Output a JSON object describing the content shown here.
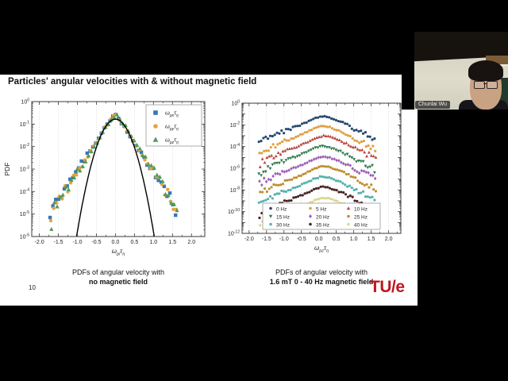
{
  "window": {
    "background": "#000000"
  },
  "slide": {
    "title": "Particles' angular velocities with & without magnetic field",
    "page_number": "10",
    "logo_text": "TU/e",
    "logo_color": "#be1620",
    "captions": {
      "left_line1": "PDFs of angular velocity with",
      "left_line2": "no magnetic field",
      "right_line1": "PDFs of angular velocity with",
      "right_line2": "1.6 mT 0 - 40 Hz magnetic field"
    }
  },
  "webcam": {
    "name_label": "Chunlai Wu"
  },
  "chart_data": [
    {
      "type": "scatter",
      "title": "",
      "ylabel": "PDF",
      "xlabel_parts": [
        "ω",
        "pi",
        "τ",
        "η"
      ],
      "xlim": [
        -2.2,
        2.35
      ],
      "x_ticks": [
        -2.0,
        -1.5,
        -1.0,
        -0.5,
        0.0,
        0.5,
        1.0,
        1.5,
        2.0
      ],
      "y_scale": "log",
      "y_min_exponent": -6,
      "y_labeled_exponents": [
        0,
        -1,
        -2,
        -3,
        -4,
        -5,
        -6
      ],
      "grid": "vertical-dotted",
      "legend_position": "top-right",
      "point_step": 0.075,
      "profile": [
        [
          -1.7,
          -5.4
        ],
        [
          -1.6,
          -4.6
        ],
        [
          -1.5,
          -4.35
        ],
        [
          -1.25,
          -3.8
        ],
        [
          -1.0,
          -3.1
        ],
        [
          -0.75,
          -2.45
        ],
        [
          -0.5,
          -1.8
        ],
        [
          -0.25,
          -1.1
        ],
        [
          0.0,
          -0.55
        ],
        [
          0.25,
          -1.1
        ],
        [
          0.5,
          -1.8
        ],
        [
          0.75,
          -2.45
        ],
        [
          1.0,
          -3.1
        ],
        [
          1.25,
          -3.8
        ],
        [
          1.5,
          -4.4
        ],
        [
          1.65,
          -5.0
        ]
      ],
      "series": [
        {
          "label_parts": [
            "ω",
            "px",
            "τ",
            "η"
          ],
          "marker": "square",
          "color": "#3b76b0"
        },
        {
          "label_parts": [
            "ω",
            "py",
            "τ",
            "η"
          ],
          "marker": "circle",
          "color": "#e8a33d"
        },
        {
          "label_parts": [
            "ω",
            "pz",
            "τ",
            "η"
          ],
          "marker": "triangle",
          "color": "#4f9c57"
        }
      ],
      "reference_curve": {
        "shape": "gaussian",
        "color": "#000000",
        "peak_log10": -0.78,
        "coef": 5.0,
        "x_extent": 1.08
      }
    },
    {
      "type": "scatter",
      "title": "",
      "ylabel": "",
      "xlabel_parts": [
        "ω",
        "pz",
        "τ",
        "η"
      ],
      "xlim": [
        -2.2,
        2.35
      ],
      "x_ticks": [
        -2.0,
        -1.5,
        -1.0,
        -0.5,
        0.0,
        0.5,
        1.0,
        1.5,
        2.0
      ],
      "y_scale": "log",
      "y_min_exponent": -12,
      "y_labeled_exponents": [
        0,
        -2,
        -4,
        -6,
        -8,
        -10,
        -12
      ],
      "grid": "vertical-dotted",
      "legend_position": "bottom-center",
      "point_step": 0.065,
      "profile": [
        [
          -1.7,
          -2.6
        ],
        [
          -1.5,
          -2.15
        ],
        [
          -1.3,
          -1.85
        ],
        [
          -1.1,
          -1.55
        ],
        [
          -0.9,
          -1.3
        ],
        [
          -0.7,
          -1.05
        ],
        [
          -0.5,
          -0.8
        ],
        [
          -0.3,
          -0.5
        ],
        [
          -0.1,
          -0.2
        ],
        [
          0.1,
          0.0
        ],
        [
          0.3,
          -0.1
        ],
        [
          0.5,
          -0.35
        ],
        [
          0.7,
          -0.6
        ],
        [
          0.9,
          -0.95
        ],
        [
          1.1,
          -1.3
        ],
        [
          1.3,
          -1.6
        ],
        [
          1.5,
          -1.9
        ],
        [
          1.65,
          -2.3
        ]
      ],
      "series": [
        {
          "label": "0 Hz",
          "marker": "circle",
          "color": "#27496d",
          "peak_log10": -1.2
        },
        {
          "label": "5 Hz",
          "marker": "circle",
          "color": "#e0a13f",
          "peak_log10": -2.1
        },
        {
          "label": "10 Hz",
          "marker": "triangle",
          "color": "#b5433a",
          "peak_log10": -3.0
        },
        {
          "label": "15 Hz",
          "marker": "tri-down",
          "color": "#2f7a4d",
          "peak_log10": -3.95
        },
        {
          "label": "20 Hz",
          "marker": "diamond",
          "color": "#9a5fb5",
          "peak_log10": -4.9
        },
        {
          "label": "25 Hz",
          "marker": "circle",
          "color": "#bf8f2e",
          "peak_log10": -5.8
        },
        {
          "label": "30 Hz",
          "marker": "circle",
          "color": "#53b3ad",
          "peak_log10": -6.75
        },
        {
          "label": "35 Hz",
          "marker": "circle",
          "color": "#4a2424",
          "peak_log10": -7.7
        },
        {
          "label": "40 Hz",
          "marker": "circle",
          "color": "#ddd78e",
          "peak_log10": -8.7
        }
      ]
    }
  ]
}
